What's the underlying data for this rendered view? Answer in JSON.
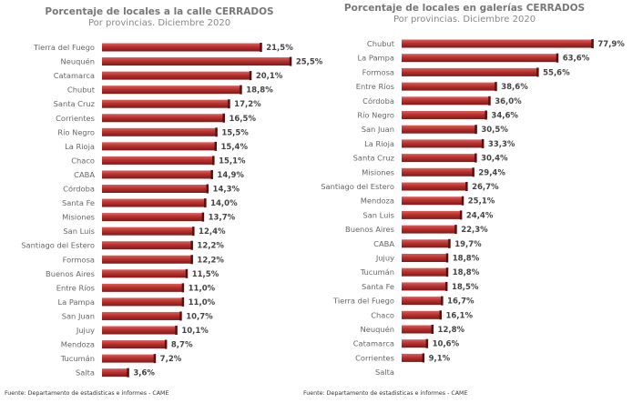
{
  "chart_data": [
    {
      "type": "bar",
      "orientation": "horizontal",
      "title": "Porcentaje de locales a la calle CERRADOS",
      "subtitle": "Por provincias. Diciembre 2020",
      "source": "Fuente: Departamento de estadisticas e informes - CAME",
      "color": "#b8312f",
      "categories": [
        "Tierra del Fuego",
        "Neuquén",
        "Catamarca",
        "Chubut",
        "Santa Cruz",
        "Corrientes",
        "Río Negro",
        "La Rioja",
        "Chaco",
        "CABA",
        "Córdoba",
        "Santa Fe",
        "Misiones",
        "San Luis",
        "Santiago del Estero",
        "Formosa",
        "Buenos Aires",
        "Entre Ríos",
        "La Pampa",
        "San Juan",
        "Jujuy",
        "Mendoza",
        "Tucumán",
        "Salta"
      ],
      "values": [
        21.5,
        25.5,
        20.1,
        18.8,
        17.2,
        16.5,
        15.5,
        15.4,
        15.1,
        14.9,
        14.3,
        14.0,
        13.7,
        12.4,
        12.2,
        12.2,
        11.5,
        11.0,
        11.0,
        10.7,
        10.1,
        8.7,
        7.2,
        3.6
      ],
      "labels": [
        "21,5%",
        "25,5%",
        "20,1%",
        "18,8%",
        "17,2%",
        "16,5%",
        "15,5%",
        "15,4%",
        "15,1%",
        "14,9%",
        "14,3%",
        "14,0%",
        "13,7%",
        "12,4%",
        "12,2%",
        "12,2%",
        "11,5%",
        "11,0%",
        "11,0%",
        "10,7%",
        "10,1%",
        "8,7%",
        "7,2%",
        "3,6%"
      ],
      "xlim": [
        0,
        27
      ],
      "grid": false
    },
    {
      "type": "bar",
      "orientation": "horizontal",
      "title": "Porcentaje de locales en galerías CERRADOS",
      "subtitle": "Por provincias. Diciembre 2020",
      "source": "Fuente: Departamento de estadisticas e informes - CAME",
      "color": "#b8312f",
      "categories": [
        "Chubut",
        "La Pampa",
        "Formosa",
        "Entre Ríos",
        "Córdoba",
        "Río Negro",
        "San Juan",
        "La Rioja",
        "Santa Cruz",
        "Misiones",
        "Santiago del Estero",
        "Mendoza",
        "San Luis",
        "Buenos Aires",
        "CABA",
        "Jujuy",
        "Tucumán",
        "Santa Fe",
        "Tierra del Fuego",
        "Chaco",
        "Neuquén",
        "Catamarca",
        "Corrientes",
        "Salta"
      ],
      "values": [
        77.9,
        63.6,
        55.6,
        38.6,
        36.0,
        34.6,
        30.5,
        33.3,
        30.4,
        29.4,
        26.7,
        25.1,
        24.4,
        22.3,
        19.7,
        18.8,
        18.8,
        18.5,
        16.7,
        16.1,
        12.8,
        10.6,
        9.1,
        null
      ],
      "labels": [
        "77,9%",
        "63,6%",
        "55,6%",
        "38,6%",
        "36,0%",
        "34,6%",
        "30,5%",
        "33,3%",
        "30,4%",
        "29,4%",
        "26,7%",
        "25,1%",
        "24,4%",
        "22,3%",
        "19,7%",
        "18,8%",
        "18,8%",
        "18,5%",
        "16,7%",
        "16,1%",
        "12,8%",
        "10,6%",
        "9,1%",
        ""
      ],
      "xlim": [
        0,
        85
      ],
      "grid": false
    }
  ]
}
